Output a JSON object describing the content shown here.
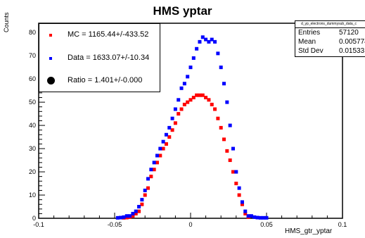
{
  "chart_data": {
    "type": "scatter",
    "title": "HMS yptar",
    "xlabel": "HMS_gtr_yptar",
    "ylabel": "Counts",
    "xlim": [
      -0.1,
      0.1
    ],
    "ylim": [
      0,
      84
    ],
    "x_ticks": [
      "-0.1",
      "-0.05",
      "0",
      "0.05",
      "0.1"
    ],
    "y_ticks": [
      "0",
      "10",
      "20",
      "30",
      "40",
      "50",
      "60",
      "70",
      "80"
    ],
    "grid": false,
    "legend_position": "top-left",
    "series": [
      {
        "name": "MC = 1165.44+/-433.52",
        "color": "#ff0000",
        "x": [
          -0.044,
          -0.042,
          -0.04,
          -0.038,
          -0.036,
          -0.034,
          -0.032,
          -0.03,
          -0.028,
          -0.026,
          -0.024,
          -0.022,
          -0.02,
          -0.018,
          -0.016,
          -0.014,
          -0.012,
          -0.01,
          -0.008,
          -0.006,
          -0.004,
          -0.002,
          0.0,
          0.002,
          0.004,
          0.006,
          0.008,
          0.01,
          0.012,
          0.014,
          0.016,
          0.018,
          0.02,
          0.022,
          0.024,
          0.026,
          0.028,
          0.03,
          0.032,
          0.034,
          0.036,
          0.038
        ],
        "y": [
          0.2,
          0.3,
          0.5,
          1,
          2,
          3,
          6,
          10,
          13,
          18,
          21,
          24,
          27,
          30,
          32,
          35,
          38,
          41,
          45,
          47,
          49,
          50,
          51,
          52,
          53,
          53,
          53,
          52,
          51,
          49,
          47,
          43,
          39,
          34,
          29,
          25,
          20,
          15,
          10,
          6,
          2,
          0.5
        ]
      },
      {
        "name": "Data = 1633.07+/-10.34",
        "color": "#0000ff",
        "x": [
          -0.048,
          -0.046,
          -0.044,
          -0.042,
          -0.04,
          -0.038,
          -0.036,
          -0.034,
          -0.032,
          -0.03,
          -0.028,
          -0.026,
          -0.024,
          -0.022,
          -0.02,
          -0.018,
          -0.016,
          -0.014,
          -0.012,
          -0.01,
          -0.008,
          -0.006,
          -0.004,
          -0.002,
          0.0,
          0.002,
          0.004,
          0.006,
          0.008,
          0.01,
          0.012,
          0.014,
          0.016,
          0.018,
          0.02,
          0.022,
          0.024,
          0.026,
          0.028,
          0.03,
          0.032,
          0.034,
          0.036,
          0.038,
          0.04,
          0.042,
          0.044,
          0.046,
          0.048,
          0.05
        ],
        "y": [
          0.2,
          0.3,
          0.5,
          1,
          1,
          2,
          3,
          5,
          8,
          12,
          17,
          21,
          24,
          27,
          30,
          33,
          36,
          39,
          43,
          47,
          51,
          56,
          58,
          61,
          65,
          69,
          73,
          76,
          78,
          77,
          76,
          77,
          76,
          71,
          65,
          58,
          50,
          40,
          30,
          20,
          13,
          7,
          3,
          1,
          1,
          0.5,
          0.3,
          0.2,
          0.2,
          0.2
        ]
      }
    ],
    "legend": [
      {
        "label": "MC = 1165.44+/-433.52",
        "color": "#ff0000",
        "marker": "small-square"
      },
      {
        "label": "Data = 1633.07+/-10.34",
        "color": "#0000ff",
        "marker": "small-square"
      },
      {
        "label": "Ratio = 1.401+/-0.000",
        "color": "#000000",
        "marker": "large-circle"
      }
    ],
    "stats_box": {
      "header": "d_yp_electrons_dummysub_data_c",
      "rows": [
        {
          "key": "Entries",
          "value": "57120"
        },
        {
          "key": "Mean",
          "value": "0.005774"
        },
        {
          "key": "Std Dev",
          "value": "0.01533"
        }
      ]
    }
  }
}
